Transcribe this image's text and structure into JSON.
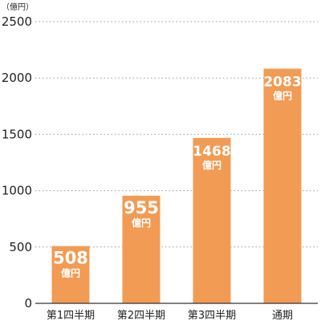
{
  "chart_data": {
    "type": "bar",
    "unit_label": "（億円）",
    "categories": [
      "第1四半期",
      "第2四半期",
      "第3四半期",
      "通期"
    ],
    "values": [
      508,
      955,
      1468,
      2083
    ],
    "data_labels": [
      {
        "number": "508",
        "unit": "億円"
      },
      {
        "number": "955",
        "unit": "億円"
      },
      {
        "number": "1468",
        "unit": "億円"
      },
      {
        "number": "2083",
        "unit": "億円"
      }
    ],
    "yticks": [
      "0",
      "500",
      "1000",
      "1500",
      "2000",
      "2500"
    ],
    "ylim": [
      0,
      2500
    ],
    "grid": true,
    "bar_color": "#F29B54"
  }
}
